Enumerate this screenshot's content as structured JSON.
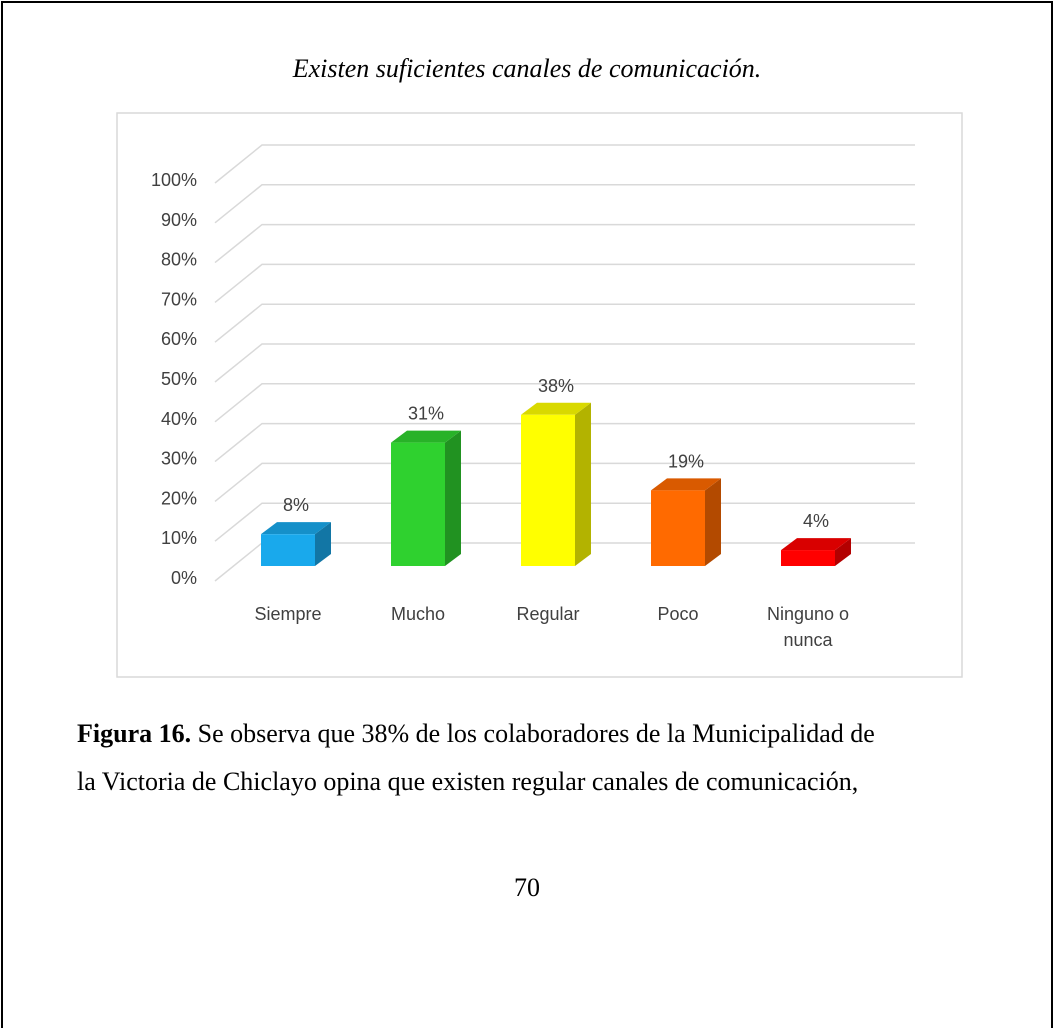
{
  "chart_data": {
    "type": "bar3d",
    "title": "Existen suficientes canales de comunicación.",
    "categories": [
      "Siempre",
      "Mucho",
      "Regular",
      "Poco",
      "Ninguno o nunca"
    ],
    "values": [
      8,
      31,
      38,
      19,
      4
    ],
    "value_labels": [
      "8%",
      "31%",
      "38%",
      "19%",
      "4%"
    ],
    "colors": [
      "#19a9ec",
      "#2fd12f",
      "#ffff00",
      "#ff6a00",
      "#ff0000"
    ],
    "ylim": [
      0,
      100
    ],
    "yticks": [
      {
        "value": 0,
        "label": "0%"
      },
      {
        "value": 10,
        "label": "10%"
      },
      {
        "value": 20,
        "label": "20%"
      },
      {
        "value": 30,
        "label": "30%"
      },
      {
        "value": 40,
        "label": "40%"
      },
      {
        "value": 50,
        "label": "50%"
      },
      {
        "value": 60,
        "label": "60%"
      },
      {
        "value": 70,
        "label": "70%"
      },
      {
        "value": 80,
        "label": "80%"
      },
      {
        "value": 90,
        "label": "90%"
      },
      {
        "value": 100,
        "label": "100%"
      }
    ],
    "grid": true
  },
  "caption": {
    "label": "Figura 16.",
    "lines": [
      "Se observa que 38% de los colaboradores de la Municipalidad de",
      "la Victoria de Chiclayo opina que existen regular canales de comunicación,"
    ]
  },
  "page_number": "70"
}
